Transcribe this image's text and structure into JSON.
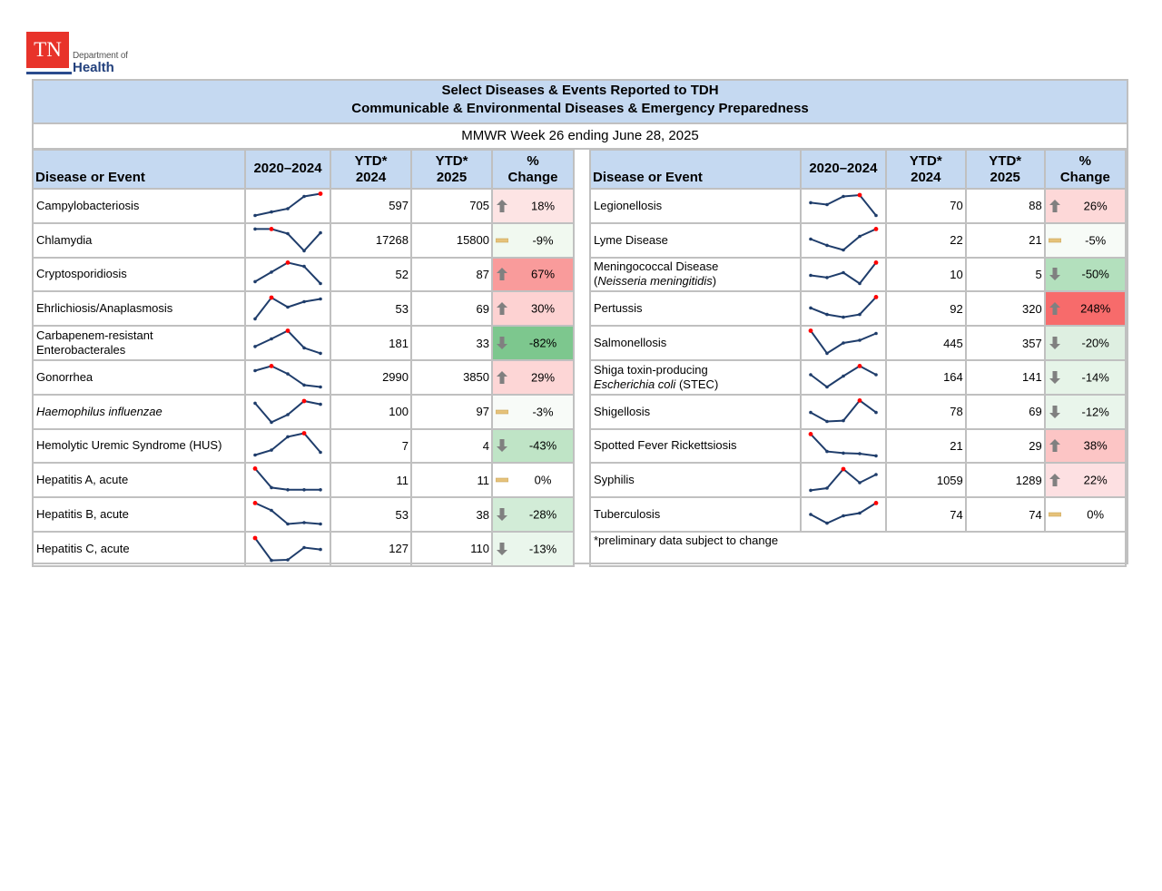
{
  "logo": {
    "badge": "TN",
    "line1": "Department of",
    "line2": "Health"
  },
  "header": {
    "title_line1": "Select Diseases & Events Reported to TDH",
    "title_line2": "Communicable & Environmental Diseases & Emergency Preparedness",
    "subtitle": "MMWR Week 26 ending June 28, 2025"
  },
  "columns": {
    "name": "Disease or Event",
    "trend": "2020–2024",
    "ytd2024_l1": "YTD*",
    "ytd2024_l2": "2024",
    "ytd2025_l1": "YTD*",
    "ytd2025_l2": "2025",
    "pct_l1": "%",
    "pct_l2": "Change"
  },
  "colors": {
    "header_bg": "#c5d9f1",
    "border": "#c0c0c0",
    "spark_line": "#1f3d6b",
    "spark_max": "#ff0000",
    "arrow": "#808080",
    "dash": "#e6c27a"
  },
  "left_rows": [
    {
      "name": "Campylobacteriosis",
      "ytd2024": "597",
      "ytd2025": "705",
      "pct": "18%",
      "trend": "up",
      "bg": "#fde4e4",
      "spark": [
        0.85,
        0.72,
        0.6,
        0.15,
        0.05
      ],
      "max": 4
    },
    {
      "name": "Chlamydia",
      "ytd2024": "17268",
      "ytd2025": "15800",
      "pct": "-9%",
      "trend": "flat",
      "bg": "#f1f9f0",
      "spark": [
        0.08,
        0.08,
        0.25,
        0.88,
        0.22
      ],
      "max": 1
    },
    {
      "name": "Cryptosporidiosis",
      "ytd2024": "52",
      "ytd2025": "87",
      "pct": "67%",
      "trend": "up",
      "bg": "#f99b9b",
      "spark": [
        0.78,
        0.43,
        0.08,
        0.22,
        0.85
      ],
      "max": 2
    },
    {
      "name": "Ehrlichiosis/Anaplasmosis",
      "ytd2024": "53",
      "ytd2025": "69",
      "pct": "30%",
      "trend": "up",
      "bg": "#fdd2d2",
      "spark": [
        0.88,
        0.1,
        0.45,
        0.25,
        0.15
      ],
      "max": 1
    },
    {
      "name": "Carbapenem-resistant",
      "name2": "Enterobacterales",
      "ytd2024": "181",
      "ytd2025": "33",
      "pct": "-82%",
      "trend": "down",
      "bg": "#7dc78e",
      "spark": [
        0.63,
        0.35,
        0.05,
        0.68,
        0.88
      ],
      "max": 2
    },
    {
      "name": "Gonorrhea",
      "ytd2024": "2990",
      "ytd2025": "3850",
      "pct": "29%",
      "trend": "up",
      "bg": "#fdd6d6",
      "spark": [
        0.25,
        0.08,
        0.37,
        0.78,
        0.85
      ],
      "max": 1
    },
    {
      "name": "Haemophilus influenzae",
      "italic": true,
      "ytd2024": "100",
      "ytd2025": "97",
      "pct": "-3%",
      "trend": "flat",
      "bg": "#f8fbf8",
      "spark": [
        0.18,
        0.88,
        0.6,
        0.1,
        0.22
      ],
      "max": 3
    },
    {
      "name": "Hemolytic Uremic Syndrome (HUS)",
      "ytd2024": "7",
      "ytd2025": "4",
      "pct": "-43%",
      "trend": "down",
      "bg": "#bfe4c6",
      "spark": [
        0.85,
        0.67,
        0.18,
        0.05,
        0.75
      ],
      "max": 3
    },
    {
      "name": "Hepatitis A, acute",
      "ytd2024": "11",
      "ytd2025": "11",
      "pct": "0%",
      "trend": "flat",
      "bg": "#ffffff",
      "spark": [
        0.08,
        0.78,
        0.86,
        0.86,
        0.86
      ],
      "max": 0
    },
    {
      "name": "Hepatitis B, acute",
      "ytd2024": "53",
      "ytd2025": "38",
      "pct": "-28%",
      "trend": "down",
      "bg": "#d2ecd7",
      "spark": [
        0.08,
        0.35,
        0.85,
        0.8,
        0.85
      ],
      "max": 0
    },
    {
      "name": "Hepatitis C, acute",
      "ytd2024": "127",
      "ytd2025": "110",
      "pct": "-13%",
      "trend": "down",
      "bg": "#eaf6ec",
      "spark": [
        0.1,
        0.92,
        0.9,
        0.45,
        0.52
      ],
      "max": 0
    }
  ],
  "right_rows": [
    {
      "name": "Legionellosis",
      "ytd2024": "70",
      "ytd2025": "88",
      "pct": "26%",
      "trend": "up",
      "bg": "#fdd8d8",
      "spark": [
        0.38,
        0.45,
        0.15,
        0.1,
        0.85
      ],
      "max": 3
    },
    {
      "name": "Lyme Disease",
      "ytd2024": "22",
      "ytd2025": "21",
      "pct": "-5%",
      "trend": "flat",
      "bg": "#f7fbf7",
      "spark": [
        0.45,
        0.68,
        0.85,
        0.35,
        0.08
      ],
      "max": 4
    },
    {
      "name": "Meningococcal Disease",
      "name2": "(Neisseria meningitidis)",
      "name2_italic_core": true,
      "ytd2024": "10",
      "ytd2025": "5",
      "pct": "-50%",
      "trend": "down",
      "bg": "#b3e0bd",
      "spark": [
        0.55,
        0.63,
        0.45,
        0.85,
        0.08
      ],
      "max": 4
    },
    {
      "name": "Pertussis",
      "ytd2024": "92",
      "ytd2025": "320",
      "pct": "248%",
      "trend": "up",
      "bg": "#f76b6b",
      "spark": [
        0.48,
        0.72,
        0.82,
        0.72,
        0.08
      ],
      "max": 4
    },
    {
      "name": "Salmonellosis",
      "ytd2024": "445",
      "ytd2025": "357",
      "pct": "-20%",
      "trend": "down",
      "bg": "#deefe1",
      "spark": [
        0.05,
        0.88,
        0.5,
        0.4,
        0.15
      ],
      "max": 0
    },
    {
      "name": "Shiga toxin-producing",
      "name2": "Escherichia coli (STEC)",
      "name2_italic_prefix": "Escherichia coli",
      "ytd2024": "164",
      "ytd2025": "141",
      "pct": "-14%",
      "trend": "down",
      "bg": "#e6f4e8",
      "spark": [
        0.4,
        0.85,
        0.45,
        0.08,
        0.4
      ],
      "max": 3
    },
    {
      "name": "Shigellosis",
      "ytd2024": "78",
      "ytd2025": "69",
      "pct": "-12%",
      "trend": "down",
      "bg": "#e9f5eb",
      "spark": [
        0.52,
        0.85,
        0.82,
        0.08,
        0.52
      ],
      "max": 3
    },
    {
      "name": "Spotted Fever Rickettsiosis",
      "ytd2024": "21",
      "ytd2025": "29",
      "pct": "38%",
      "trend": "up",
      "bg": "#fcc5c5",
      "spark": [
        0.08,
        0.72,
        0.78,
        0.8,
        0.88
      ],
      "max": 0
    },
    {
      "name": "Syphilis",
      "ytd2024": "1059",
      "ytd2025": "1289",
      "pct": "22%",
      "trend": "up",
      "bg": "#fde0e2",
      "spark": [
        0.88,
        0.8,
        0.1,
        0.6,
        0.3
      ],
      "max": 2
    },
    {
      "name": "Tuberculosis",
      "ytd2024": "74",
      "ytd2025": "74",
      "pct": "0%",
      "trend": "flat",
      "bg": "#ffffff",
      "spark": [
        0.5,
        0.82,
        0.55,
        0.45,
        0.08
      ],
      "max": 4
    }
  ],
  "footnote": "*preliminary data subject to change"
}
